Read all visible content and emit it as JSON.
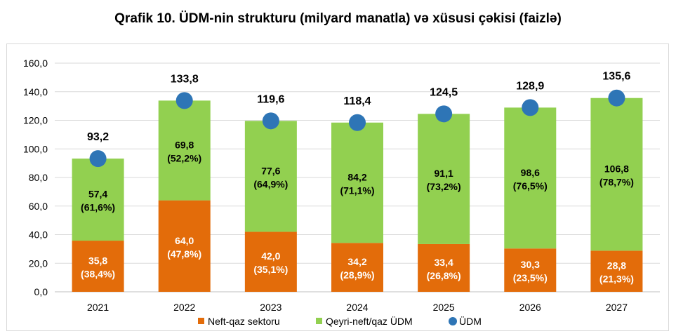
{
  "chart_data": {
    "type": "bar",
    "stacked": true,
    "title": "Qrafik 10. ÜDM-nin strukturu (milyard manatla) və xüsusi çəkisi (faizlə)",
    "categories": [
      "2021",
      "2022",
      "2023",
      "2024",
      "2025",
      "2026",
      "2027"
    ],
    "ylim": [
      0,
      160
    ],
    "ytick_step": 20,
    "ytick_labels": [
      "0,0",
      "20,0",
      "40,0",
      "60,0",
      "80,0",
      "100,0",
      "120,0",
      "140,0",
      "160,0"
    ],
    "grid": true,
    "legend_position": "bottom",
    "series": [
      {
        "name": "Neft-qaz sektoru",
        "color": "#e36c0a",
        "label_color": "#ffffff",
        "values": [
          35.8,
          64.0,
          42.0,
          34.2,
          33.4,
          30.3,
          28.8
        ],
        "labels": [
          "35,8",
          "64,0",
          "42,0",
          "34,2",
          "33,4",
          "30,3",
          "28,8"
        ],
        "shares": [
          "(38,4%)",
          "(47,8%)",
          "(35,1%)",
          "(28,9%)",
          "(26,8%)",
          "(23,5%)",
          "(21,3%)"
        ]
      },
      {
        "name": "Qeyri-neft/qaz ÜDM",
        "color": "#92d050",
        "label_color": "#000000",
        "values": [
          57.4,
          69.8,
          77.6,
          84.2,
          91.1,
          98.6,
          106.8
        ],
        "labels": [
          "57,4",
          "69,8",
          "77,6",
          "84,2",
          "91,1",
          "98,6",
          "106,8"
        ],
        "shares": [
          "(61,6%)",
          "(52,2%)",
          "(64,9%)",
          "(71,1%)",
          "(73,2%)",
          "(76,5%)",
          "(78,7%)"
        ]
      },
      {
        "name": "ÜDM",
        "type": "scatter",
        "color": "#2e75b6",
        "values": [
          93.2,
          133.8,
          119.6,
          118.4,
          124.5,
          128.9,
          135.6
        ],
        "labels": [
          "93,2",
          "133,8",
          "119,6",
          "118,4",
          "124,5",
          "128,9",
          "135,6"
        ]
      }
    ]
  }
}
